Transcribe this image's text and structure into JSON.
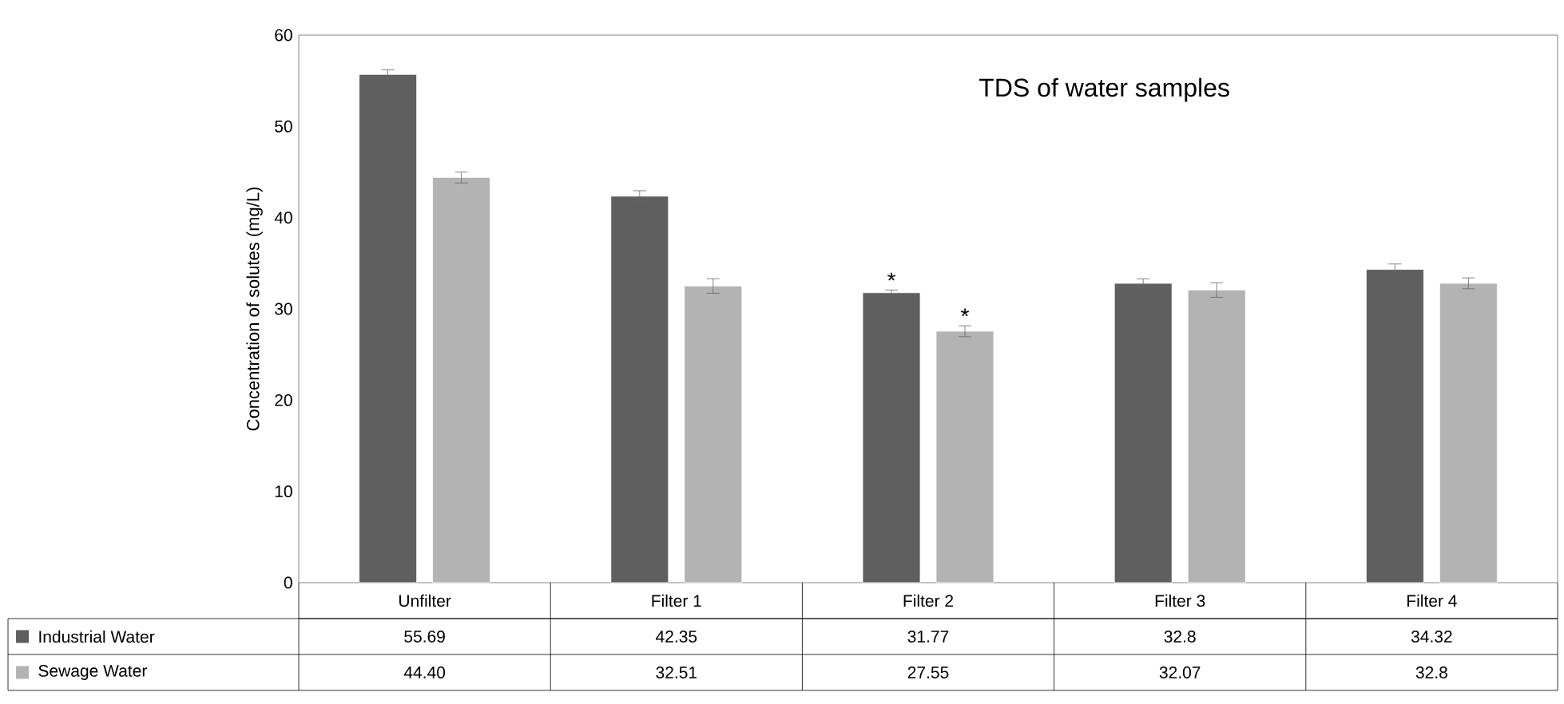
{
  "chart_data": {
    "type": "bar",
    "title": "TDS of water samples",
    "ylabel": "Concentration of solutes (mg/L)",
    "categories": [
      "Unfilter",
      "Filter 1",
      "Filter 2",
      "Filter 3",
      "Filter 4"
    ],
    "series": [
      {
        "name": "Industrial Water",
        "color": "#5f5f5f",
        "values": [
          55.69,
          42.35,
          31.77,
          32.8,
          34.32
        ],
        "errors": [
          0.5,
          0.6,
          0.3,
          0.5,
          0.6
        ],
        "value_labels": [
          "55.69",
          "42.35",
          "31.77",
          "32.8",
          "34.32"
        ]
      },
      {
        "name": "Sewage Water",
        "color": "#b3b3b3",
        "values": [
          44.4,
          32.51,
          27.55,
          32.07,
          32.8
        ],
        "errors": [
          0.6,
          0.8,
          0.6,
          0.8,
          0.6
        ],
        "value_labels": [
          "44.40",
          "32.51",
          "27.55",
          "32.07",
          "32.8"
        ]
      }
    ],
    "ylim": [
      0,
      60
    ],
    "yticks": [
      0,
      10,
      20,
      30,
      40,
      50,
      60
    ],
    "grid": false,
    "legend": "bottom",
    "annotations": [
      "*",
      "*"
    ]
  }
}
